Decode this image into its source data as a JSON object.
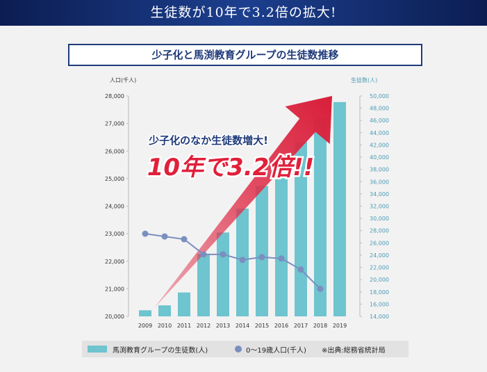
{
  "banner": {
    "title": "生徒数が10年で3.2倍の拡大!"
  },
  "chart_data": {
    "type": "bar",
    "title": "少子化と馬渕教育グループの生徒数推移",
    "categories": [
      "2009",
      "2010",
      "2011",
      "2012",
      "2013",
      "2014",
      "2015",
      "2016",
      "2017",
      "2018",
      "2019"
    ],
    "left_axis": {
      "label": "人口(千人)",
      "ylim": [
        20000,
        28000
      ],
      "ticks": [
        "28,000",
        "27,000",
        "26,000",
        "25,000",
        "24,000",
        "23,000",
        "22,000",
        "21,000",
        "20,000"
      ]
    },
    "right_axis": {
      "label": "生徒数(人)",
      "ylim": [
        14000,
        50000
      ],
      "ticks": [
        "50,000",
        "48,000",
        "46,000",
        "44,000",
        "42,000",
        "40,000",
        "38,000",
        "36,000",
        "34,000",
        "32,000",
        "30,000",
        "28,000",
        "26,000",
        "24,000",
        "22,000",
        "20,000",
        "18,000",
        "16,000",
        "14,000"
      ]
    },
    "series": [
      {
        "name": "馬渕教育グループの生徒数(人)",
        "type": "bar",
        "axis": "right",
        "values": [
          15000,
          15800,
          17900,
          24200,
          27700,
          31600,
          35300,
          39900,
          42500,
          46400,
          49000
        ]
      },
      {
        "name": "0〜19歳人口(千人)",
        "type": "line",
        "axis": "left",
        "values": [
          23000,
          22900,
          22800,
          22250,
          22250,
          22050,
          22150,
          22100,
          21700,
          21000,
          null
        ]
      }
    ],
    "annotation": {
      "line1": "少子化のなか生徒数増大!",
      "line2": "10年で3.2倍!!"
    },
    "legend": {
      "placement": "bottom"
    },
    "colors": {
      "bar": "#6ec4cf",
      "line": "#7a8fc0",
      "arrow": "#e0304a"
    }
  },
  "legend_source": "※出典:総務省統計局"
}
